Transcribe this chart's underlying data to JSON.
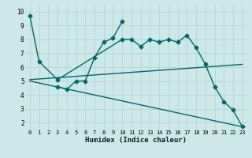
{
  "xlabel": "Humidex (Indice chaleur)",
  "xlim": [
    -0.5,
    23.5
  ],
  "ylim": [
    1.5,
    10.5
  ],
  "yticks": [
    2,
    3,
    4,
    5,
    6,
    7,
    8,
    9,
    10
  ],
  "xticks": [
    0,
    1,
    2,
    3,
    4,
    5,
    6,
    7,
    8,
    9,
    10,
    11,
    12,
    13,
    14,
    15,
    16,
    17,
    18,
    19,
    20,
    21,
    22,
    23
  ],
  "bg_color": "#cce8e8",
  "line_color": "#006868",
  "grid_color": "#b8d8d8",
  "lines": [
    {
      "x": [
        0,
        1,
        3,
        10,
        11,
        12,
        13,
        14,
        15,
        16,
        17,
        18,
        19,
        20,
        21,
        22,
        23
      ],
      "y": [
        9.7,
        6.4,
        5.1,
        8.0,
        8.0,
        7.5,
        8.0,
        7.8,
        8.0,
        7.8,
        8.3,
        7.4,
        6.2,
        4.6,
        3.5,
        2.9,
        1.7
      ],
      "marker": "D",
      "markersize": 2.5,
      "linewidth": 1.0,
      "linestyle": "-"
    },
    {
      "x": [
        3,
        4,
        5,
        6,
        7,
        8,
        9,
        10
      ],
      "y": [
        4.6,
        4.4,
        5.0,
        5.0,
        6.7,
        7.8,
        8.1,
        9.3
      ],
      "marker": "D",
      "markersize": 2.5,
      "linewidth": 1.0,
      "linestyle": "-"
    },
    {
      "x": [
        0,
        23
      ],
      "y": [
        5.1,
        6.2
      ],
      "marker": null,
      "markersize": 0,
      "linewidth": 1.0,
      "linestyle": "-"
    },
    {
      "x": [
        0,
        23
      ],
      "y": [
        5.0,
        1.7
      ],
      "marker": null,
      "markersize": 0,
      "linewidth": 1.0,
      "linestyle": "-"
    }
  ]
}
